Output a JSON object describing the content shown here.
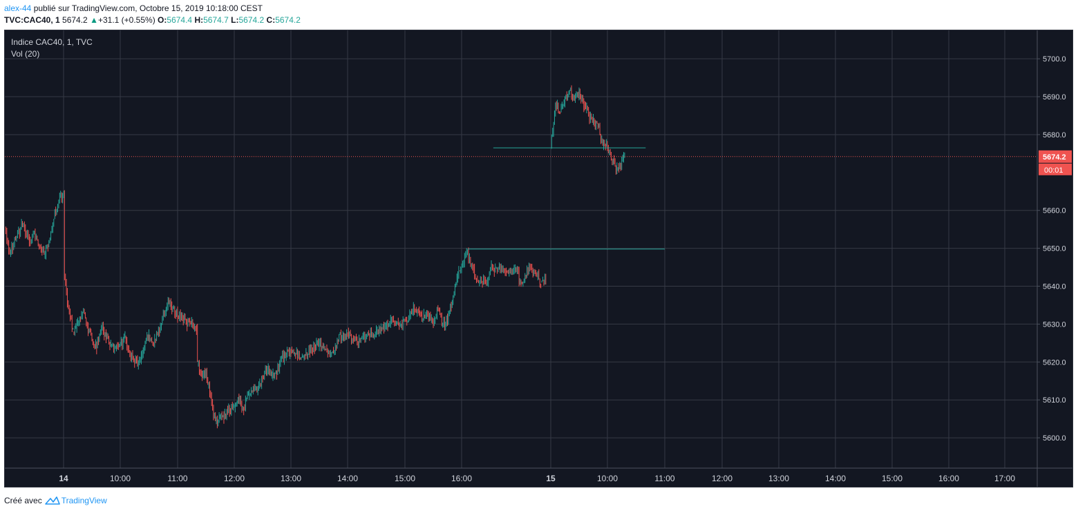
{
  "header": {
    "user": "alex-44",
    "published_text": "publié sur TradingView.com, Octobre 15, 2019 10:18:00 CEST",
    "symbol": "TVC:CAC40, 1",
    "last": "5674.2",
    "change_arrow": "▲",
    "change": "+31.1 (+0.55%)",
    "o_label": "O:",
    "o_value": "5674.4",
    "h_label": "H:",
    "h_value": "5674.7",
    "l_label": "L:",
    "l_value": "5674.2",
    "c_label": "C:",
    "c_value": "5674.2"
  },
  "legend": {
    "title": "Indice CAC40, 1, TVC",
    "volume": "Vol (20)"
  },
  "footer": {
    "created_with": "Créé avec",
    "brand": "TradingView"
  },
  "colors": {
    "background": "#131722",
    "grid": "#363a45",
    "up_candle": "#26a69a",
    "down_candle": "#ef5350",
    "horizontal_line": "#26a69a",
    "last_price": "#ef5350",
    "axis_text": "#d1d4dc"
  },
  "chart_data": {
    "type": "candlestick",
    "title": "Indice CAC40, 1, TVC",
    "y_ticks": [
      5600.0,
      5610.0,
      5620.0,
      5630.0,
      5640.0,
      5650.0,
      5660.0,
      5680.0,
      5690.0,
      5700.0
    ],
    "y_tick_labels": [
      "5600.0",
      "5610.0",
      "5620.0",
      "5630.0",
      "5640.0",
      "5650.0",
      "5660.0",
      "5680.0",
      "5690.0",
      "5700.0"
    ],
    "ylim": [
      5592.0,
      5707.5
    ],
    "x_tick_labels": [
      "14",
      "10:00",
      "11:00",
      "12:00",
      "13:00",
      "14:00",
      "15:00",
      "16:00",
      "15",
      "10:00",
      "11:00",
      "12:00",
      "13:00",
      "14:00",
      "15:00",
      "16:00",
      "17:00"
    ],
    "x_ticks": [
      "2019-10-14 09:00",
      "2019-10-14 10:00",
      "2019-10-14 11:00",
      "2019-10-14 12:00",
      "2019-10-14 13:00",
      "2019-10-14 14:00",
      "2019-10-14 15:00",
      "2019-10-14 16:00",
      "2019-10-15 09:00",
      "2019-10-15 10:00",
      "2019-10-15 11:00",
      "2019-10-15 12:00",
      "2019-10-15 13:00",
      "2019-10-15 14:00",
      "2019-10-15 15:00",
      "2019-10-15 16:00",
      "2019-10-15 17:00"
    ],
    "last_price": 5674.2,
    "last_price_label": "5674.2",
    "countdown_label": "00:01",
    "horizontal_lines": [
      {
        "price": 5676.5,
        "from": "2019-10-14 16:32",
        "to": "2019-10-15 10:40"
      },
      {
        "price": 5649.8,
        "from": "2019-10-14 16:06",
        "to": "2019-10-15 11:00"
      }
    ],
    "path_points": [
      {
        "t": "2019-10-14 08:00",
        "p": 5655
      },
      {
        "t": "2019-10-14 08:05",
        "p": 5649
      },
      {
        "t": "2019-10-14 08:12",
        "p": 5653
      },
      {
        "t": "2019-10-14 08:18",
        "p": 5656
      },
      {
        "t": "2019-10-14 08:25",
        "p": 5652
      },
      {
        "t": "2019-10-14 08:30",
        "p": 5654
      },
      {
        "t": "2019-10-14 08:35",
        "p": 5650
      },
      {
        "t": "2019-10-14 08:40",
        "p": 5648
      },
      {
        "t": "2019-10-14 08:45",
        "p": 5652
      },
      {
        "t": "2019-10-14 08:50",
        "p": 5658
      },
      {
        "t": "2019-10-14 08:55",
        "p": 5662
      },
      {
        "t": "2019-10-14 09:00",
        "p": 5665
      },
      {
        "t": "2019-10-14 09:01",
        "p": 5643
      },
      {
        "t": "2019-10-14 09:05",
        "p": 5634
      },
      {
        "t": "2019-10-14 09:10",
        "p": 5628
      },
      {
        "t": "2019-10-14 09:15",
        "p": 5630
      },
      {
        "t": "2019-10-14 09:20",
        "p": 5633
      },
      {
        "t": "2019-10-14 09:25",
        "p": 5630
      },
      {
        "t": "2019-10-14 09:30",
        "p": 5626
      },
      {
        "t": "2019-10-14 09:35",
        "p": 5624
      },
      {
        "t": "2019-10-14 09:40",
        "p": 5629
      },
      {
        "t": "2019-10-14 09:45",
        "p": 5627
      },
      {
        "t": "2019-10-14 09:50",
        "p": 5624
      },
      {
        "t": "2019-10-14 09:55",
        "p": 5623
      },
      {
        "t": "2019-10-14 10:00",
        "p": 5625
      },
      {
        "t": "2019-10-14 10:05",
        "p": 5626
      },
      {
        "t": "2019-10-14 10:10",
        "p": 5622
      },
      {
        "t": "2019-10-14 10:15",
        "p": 5620
      },
      {
        "t": "2019-10-14 10:20",
        "p": 5620
      },
      {
        "t": "2019-10-14 10:25",
        "p": 5624
      },
      {
        "t": "2019-10-14 10:30",
        "p": 5627
      },
      {
        "t": "2019-10-14 10:35",
        "p": 5625
      },
      {
        "t": "2019-10-14 10:40",
        "p": 5628
      },
      {
        "t": "2019-10-14 10:45",
        "p": 5633
      },
      {
        "t": "2019-10-14 10:50",
        "p": 5636
      },
      {
        "t": "2019-10-14 10:55",
        "p": 5634
      },
      {
        "t": "2019-10-14 11:00",
        "p": 5632
      },
      {
        "t": "2019-10-14 11:05",
        "p": 5632
      },
      {
        "t": "2019-10-14 11:10",
        "p": 5630
      },
      {
        "t": "2019-10-14 11:15",
        "p": 5630
      },
      {
        "t": "2019-10-14 11:20",
        "p": 5629
      },
      {
        "t": "2019-10-14 11:21",
        "p": 5620
      },
      {
        "t": "2019-10-14 11:25",
        "p": 5617
      },
      {
        "t": "2019-10-14 11:30",
        "p": 5618
      },
      {
        "t": "2019-10-14 11:35",
        "p": 5611
      },
      {
        "t": "2019-10-14 11:40",
        "p": 5604
      },
      {
        "t": "2019-10-14 11:45",
        "p": 5605
      },
      {
        "t": "2019-10-14 11:50",
        "p": 5606
      },
      {
        "t": "2019-10-14 11:55",
        "p": 5607
      },
      {
        "t": "2019-10-14 12:00",
        "p": 5608
      },
      {
        "t": "2019-10-14 12:05",
        "p": 5610
      },
      {
        "t": "2019-10-14 12:10",
        "p": 5608
      },
      {
        "t": "2019-10-14 12:15",
        "p": 5611
      },
      {
        "t": "2019-10-14 12:20",
        "p": 5614
      },
      {
        "t": "2019-10-14 12:25",
        "p": 5613
      },
      {
        "t": "2019-10-14 12:30",
        "p": 5616
      },
      {
        "t": "2019-10-14 12:35",
        "p": 5618
      },
      {
        "t": "2019-10-14 12:40",
        "p": 5616
      },
      {
        "t": "2019-10-14 12:45",
        "p": 5617
      },
      {
        "t": "2019-10-14 12:50",
        "p": 5621
      },
      {
        "t": "2019-10-14 12:55",
        "p": 5622
      },
      {
        "t": "2019-10-14 13:00",
        "p": 5623
      },
      {
        "t": "2019-10-14 13:05",
        "p": 5622
      },
      {
        "t": "2019-10-14 13:10",
        "p": 5621
      },
      {
        "t": "2019-10-14 13:15",
        "p": 5622
      },
      {
        "t": "2019-10-14 13:20",
        "p": 5623
      },
      {
        "t": "2019-10-14 13:25",
        "p": 5624
      },
      {
        "t": "2019-10-14 13:30",
        "p": 5625
      },
      {
        "t": "2019-10-14 13:35",
        "p": 5624
      },
      {
        "t": "2019-10-14 13:40",
        "p": 5623
      },
      {
        "t": "2019-10-14 13:45",
        "p": 5623
      },
      {
        "t": "2019-10-14 13:50",
        "p": 5626
      },
      {
        "t": "2019-10-14 13:55",
        "p": 5627
      },
      {
        "t": "2019-10-14 14:00",
        "p": 5628
      },
      {
        "t": "2019-10-14 14:05",
        "p": 5626
      },
      {
        "t": "2019-10-14 14:10",
        "p": 5625
      },
      {
        "t": "2019-10-14 14:15",
        "p": 5626
      },
      {
        "t": "2019-10-14 14:20",
        "p": 5627
      },
      {
        "t": "2019-10-14 14:25",
        "p": 5627
      },
      {
        "t": "2019-10-14 14:30",
        "p": 5628
      },
      {
        "t": "2019-10-14 14:35",
        "p": 5629
      },
      {
        "t": "2019-10-14 14:40",
        "p": 5629
      },
      {
        "t": "2019-10-14 14:45",
        "p": 5631
      },
      {
        "t": "2019-10-14 14:50",
        "p": 5630
      },
      {
        "t": "2019-10-14 14:55",
        "p": 5630
      },
      {
        "t": "2019-10-14 15:00",
        "p": 5631
      },
      {
        "t": "2019-10-14 15:05",
        "p": 5632
      },
      {
        "t": "2019-10-14 15:10",
        "p": 5634
      },
      {
        "t": "2019-10-14 15:15",
        "p": 5633
      },
      {
        "t": "2019-10-14 15:20",
        "p": 5632
      },
      {
        "t": "2019-10-14 15:25",
        "p": 5632
      },
      {
        "t": "2019-10-14 15:30",
        "p": 5630
      },
      {
        "t": "2019-10-14 15:35",
        "p": 5634
      },
      {
        "t": "2019-10-14 15:40",
        "p": 5630
      },
      {
        "t": "2019-10-14 15:45",
        "p": 5631
      },
      {
        "t": "2019-10-14 15:50",
        "p": 5636
      },
      {
        "t": "2019-10-14 15:55",
        "p": 5642
      },
      {
        "t": "2019-10-14 16:00",
        "p": 5645
      },
      {
        "t": "2019-10-14 16:05",
        "p": 5649
      },
      {
        "t": "2019-10-14 16:10",
        "p": 5645
      },
      {
        "t": "2019-10-14 16:15",
        "p": 5642
      },
      {
        "t": "2019-10-14 16:20",
        "p": 5641
      },
      {
        "t": "2019-10-14 16:25",
        "p": 5641
      },
      {
        "t": "2019-10-14 16:30",
        "p": 5645
      },
      {
        "t": "2019-10-14 16:35",
        "p": 5644
      },
      {
        "t": "2019-10-14 16:40",
        "p": 5645
      },
      {
        "t": "2019-10-14 16:45",
        "p": 5644
      },
      {
        "t": "2019-10-14 16:50",
        "p": 5644
      },
      {
        "t": "2019-10-14 16:55",
        "p": 5644
      },
      {
        "t": "2019-10-14 17:00",
        "p": 5641
      },
      {
        "t": "2019-10-14 17:05",
        "p": 5643
      },
      {
        "t": "2019-10-14 17:10",
        "p": 5645
      },
      {
        "t": "2019-10-14 17:15",
        "p": 5643
      },
      {
        "t": "2019-10-14 17:20",
        "p": 5641
      },
      {
        "t": "2019-10-14 17:25",
        "p": 5642
      },
      {
        "t": "2019-10-15 09:00",
        "p": 5677
      },
      {
        "t": "2019-10-15 09:05",
        "p": 5688
      },
      {
        "t": "2019-10-15 09:10",
        "p": 5686
      },
      {
        "t": "2019-10-15 09:15",
        "p": 5690
      },
      {
        "t": "2019-10-15 09:20",
        "p": 5692
      },
      {
        "t": "2019-10-15 09:25",
        "p": 5689
      },
      {
        "t": "2019-10-15 09:30",
        "p": 5691
      },
      {
        "t": "2019-10-15 09:35",
        "p": 5688
      },
      {
        "t": "2019-10-15 09:40",
        "p": 5685
      },
      {
        "t": "2019-10-15 09:45",
        "p": 5684
      },
      {
        "t": "2019-10-15 09:50",
        "p": 5682
      },
      {
        "t": "2019-10-15 09:55",
        "p": 5677
      },
      {
        "t": "2019-10-15 10:00",
        "p": 5677
      },
      {
        "t": "2019-10-15 10:05",
        "p": 5673
      },
      {
        "t": "2019-10-15 10:10",
        "p": 5671
      },
      {
        "t": "2019-10-15 10:15",
        "p": 5673
      },
      {
        "t": "2019-10-15 10:18",
        "p": 5674.2
      }
    ]
  }
}
